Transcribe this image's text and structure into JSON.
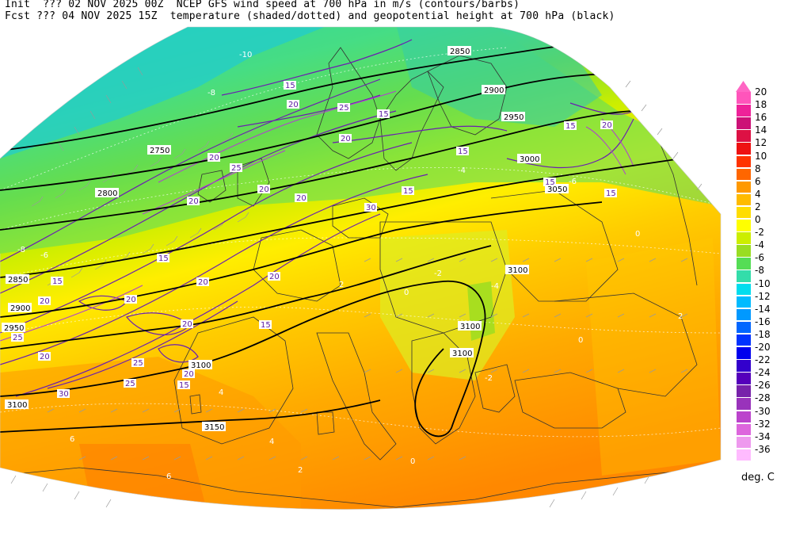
{
  "header": {
    "init_line": "Init  ??? 02 NOV 2025 00Z  NCEP GFS wind speed at 700 hPa in m/s (contours/barbs)",
    "fcst_line": "Fcst ??? 04 NOV 2025 15Z  temperature (shaded/dotted) and geopotential height at 700 hPa (black)"
  },
  "colorbar": {
    "units": "deg. C",
    "top_arrow_color": "#ff66c4",
    "levels": [
      {
        "label": "20",
        "color": "#ff55bb"
      },
      {
        "label": "18",
        "color": "#ee2299"
      },
      {
        "label": "16",
        "color": "#cc1177"
      },
      {
        "label": "14",
        "color": "#dd1144"
      },
      {
        "label": "12",
        "color": "#ee1111"
      },
      {
        "label": "10",
        "color": "#ff3300"
      },
      {
        "label": "8",
        "color": "#ff6600"
      },
      {
        "label": "6",
        "color": "#ff9900"
      },
      {
        "label": "4",
        "color": "#ffbb00"
      },
      {
        "label": "2",
        "color": "#ffdd00"
      },
      {
        "label": "0",
        "color": "#ffff00"
      },
      {
        "label": "-2",
        "color": "#ccee00"
      },
      {
        "label": "-4",
        "color": "#99dd22"
      },
      {
        "label": "-6",
        "color": "#55dd55"
      },
      {
        "label": "-8",
        "color": "#33ddaa"
      },
      {
        "label": "-10",
        "color": "#00ddee"
      },
      {
        "label": "-12",
        "color": "#00bbff"
      },
      {
        "label": "-14",
        "color": "#0099ff"
      },
      {
        "label": "-16",
        "color": "#0066ff"
      },
      {
        "label": "-18",
        "color": "#0033ff"
      },
      {
        "label": "-20",
        "color": "#0000ee"
      },
      {
        "label": "-22",
        "color": "#3300cc"
      },
      {
        "label": "-24",
        "color": "#5500bb"
      },
      {
        "label": "-26",
        "color": "#7722aa"
      },
      {
        "label": "-28",
        "color": "#9933bb"
      },
      {
        "label": "-30",
        "color": "#bb44cc"
      },
      {
        "label": "-32",
        "color": "#dd66dd"
      },
      {
        "label": "-34",
        "color": "#ee99ee"
      },
      {
        "label": "-36",
        "color": "#ffbbff"
      }
    ]
  },
  "map": {
    "height_contour_labels": [
      "2750",
      "2800",
      "2850",
      "2900",
      "2950",
      "3000",
      "3050",
      "3100",
      "3150"
    ],
    "wind_contour_labels": [
      "15",
      "20",
      "25",
      "30"
    ],
    "temperature_labels": [
      "-10",
      "-8",
      "-6",
      "-4",
      "-2",
      "0",
      "2",
      "4",
      "6"
    ]
  }
}
